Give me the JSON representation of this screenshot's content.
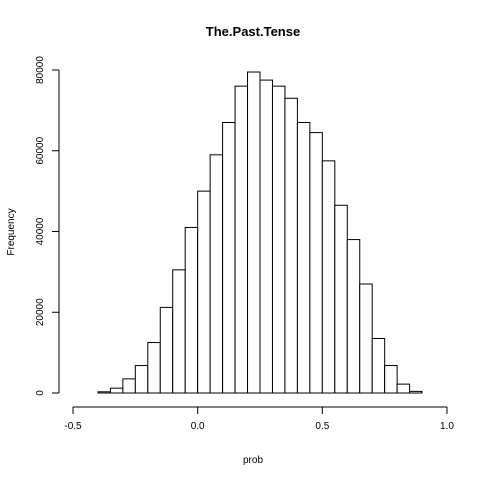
{
  "chart_data": {
    "type": "bar",
    "title": "The.Past.Tense",
    "xlabel": "prob",
    "ylabel": "Frequency",
    "bin_width": 0.05,
    "bin_starts": [
      -0.4,
      -0.35,
      -0.3,
      -0.25,
      -0.2,
      -0.15,
      -0.1,
      -0.05,
      0.0,
      0.05,
      0.1,
      0.15,
      0.2,
      0.25,
      0.3,
      0.35,
      0.4,
      0.45,
      0.5,
      0.55,
      0.6,
      0.65,
      0.7,
      0.75,
      0.8,
      0.85
    ],
    "values": [
      300,
      1200,
      3500,
      6800,
      12500,
      21200,
      30500,
      41000,
      50000,
      59000,
      67000,
      76000,
      79500,
      77500,
      76000,
      73000,
      67000,
      64500,
      57500,
      46500,
      38000,
      27000,
      13500,
      6800,
      2200,
      400
    ],
    "xlim": [
      -0.5,
      1.0
    ],
    "ylim": [
      0,
      80000
    ],
    "x_ticks": [
      -0.5,
      0.0,
      0.5,
      1.0
    ],
    "x_tick_labels": [
      "-0.5",
      "0.0",
      "0.5",
      "1.0"
    ],
    "y_ticks": [
      0,
      20000,
      40000,
      60000,
      80000
    ],
    "y_tick_labels": [
      "0",
      "20000",
      "40000",
      "60000",
      "80000"
    ],
    "grid": false,
    "colors": {
      "bar_fill": "#ffffff",
      "bar_stroke": "#000000"
    }
  }
}
